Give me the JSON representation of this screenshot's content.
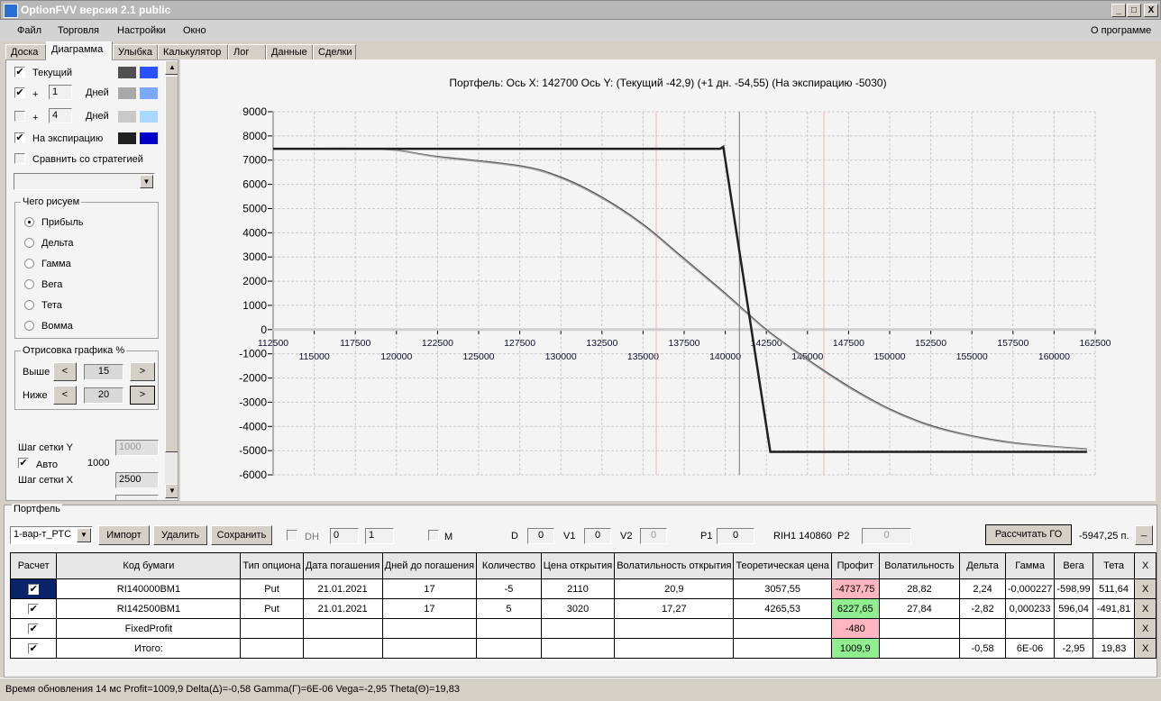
{
  "window": {
    "title": "OptionFVV версия 2.1 public",
    "minimize": "_",
    "maximize": "□",
    "close": "X"
  },
  "menu": {
    "items": [
      "Файл",
      "Торговля",
      "Настройки",
      "Окно"
    ],
    "about": "О программе"
  },
  "tabs": [
    "Доска",
    "Диаграмма",
    "Улыбка",
    "Калькулятор",
    "Лог",
    "Данные",
    "Сделки"
  ],
  "active_tab": "Диаграмма",
  "left": {
    "current": {
      "label": "Текущий",
      "checked": true,
      "colors": [
        "#505050",
        "#2b50ff"
      ]
    },
    "plus1": {
      "plus": "+",
      "days": "1",
      "days_label": "Дней",
      "checked": true,
      "colors": [
        "#a8a8a8",
        "#78a8ff"
      ]
    },
    "plus4": {
      "plus": "+",
      "days": "4",
      "days_label": "Дней",
      "checked": false,
      "colors": [
        "#c8c8c8",
        "#a8d8ff"
      ]
    },
    "expiration": {
      "label": "На экспирацию",
      "checked": true,
      "colors": [
        "#202020",
        "#0000c8"
      ]
    },
    "compare": {
      "label": "Сравнить со стратегией",
      "checked": false
    },
    "strategy_select": "",
    "draw_group": {
      "title": "Чего рисуем",
      "options": [
        "Прибыль",
        "Дельта",
        "Гамма",
        "Вега",
        "Тета",
        "Вомма"
      ],
      "selected": "Прибыль"
    },
    "render_group": {
      "title": "Отрисовка графика %",
      "above_label": "Выше",
      "above": "15",
      "below_label": "Ниже",
      "below": "20",
      "dec": "<",
      "inc": ">"
    },
    "grid_y_label": "Шаг сетки Y",
    "grid_y": "1000",
    "auto_label": "Авто",
    "auto_checked": true,
    "auto_value": "1000",
    "grid_x_label": "Шаг сетки X",
    "grid_x": "2500"
  },
  "chart_data": {
    "type": "line",
    "title": "Портфель: Ось X: 142700 Ось Y:  (Текущий -42,9)  (+1 дн. -54,55)  (На экспирацию -5030)",
    "xlim": [
      112500,
      162500
    ],
    "ylim": [
      -6000,
      9000
    ],
    "x_ticks_top": [
      112500,
      117500,
      122500,
      127500,
      132500,
      137500,
      142500,
      147500,
      152500,
      157500,
      162500
    ],
    "x_ticks_bottom": [
      115000,
      120000,
      125000,
      130000,
      135000,
      140000,
      145000,
      150000,
      155000,
      160000
    ],
    "y_ticks": [
      9000,
      8000,
      7000,
      6000,
      5000,
      4000,
      3000,
      2000,
      1000,
      0,
      -1000,
      -2000,
      -3000,
      -4000,
      -5000,
      -6000
    ],
    "grid": true,
    "vlines": [
      {
        "x": 135800,
        "color": "#ffb0b8"
      },
      {
        "x": 146000,
        "color": "#ffb0b8"
      },
      {
        "x": 140860,
        "color": "#707880"
      }
    ],
    "series": [
      {
        "name": "Текущий",
        "color": "#505050",
        "x": [
          112500,
          118900,
          122500,
          127500,
          130000,
          132500,
          135000,
          137500,
          140000,
          142500,
          145000,
          147500,
          150000,
          152500,
          155000,
          157500,
          160000,
          162000
        ],
        "y": [
          7470,
          7470,
          7150,
          6770,
          6300,
          5470,
          4350,
          2930,
          1500,
          0,
          -1230,
          -2340,
          -3280,
          -3960,
          -4390,
          -4670,
          -4830,
          -4930
        ]
      },
      {
        "name": "+1 дн.",
        "color": "#a8a8a8",
        "x": [
          112500,
          118900,
          122500,
          127500,
          130000,
          132500,
          135000,
          137500,
          140000,
          142500,
          145000,
          147500,
          150000,
          152500,
          155000,
          157500,
          160000,
          162000
        ],
        "y": [
          7470,
          7460,
          7120,
          6730,
          6250,
          5420,
          4300,
          2880,
          1450,
          -40,
          -1270,
          -2390,
          -3320,
          -4000,
          -4420,
          -4700,
          -4850,
          -4950
        ]
      },
      {
        "name": "На экспирацию",
        "color": "#202020",
        "x": [
          112500,
          139700,
          139880,
          142740,
          162000
        ],
        "y": [
          7470,
          7470,
          7550,
          -5050,
          -5050
        ]
      }
    ]
  },
  "portfolio": {
    "title": "Портфель",
    "preset": "1-вар-т_РТС",
    "import": "Импорт",
    "delete": "Удалить",
    "save": "Сохранить",
    "dh_label": "DH",
    "dh_checked": false,
    "spin1": "0",
    "spin2": "1",
    "m_label": "M",
    "m_checked": false,
    "d_label": "D",
    "d": "0",
    "v1_label": "V1",
    "v1": "0",
    "v2_label": "V2",
    "v2": "0",
    "p1_label": "P1",
    "p1": "0",
    "ticker": "RIH1 140860",
    "p2_label": "P2",
    "p2": "0",
    "calc_go": "Рассчитать ГО",
    "go_value": "-5947,25 п.",
    "collapse": "_",
    "columns": [
      "Расчет",
      "Код бумаги",
      "Тип опциона",
      "Дата погашения",
      "Дней до погашения",
      "Количество",
      "Цена открытия",
      "Волатильность открытия",
      "Теоретическая цена",
      "Профит",
      "Волатильность",
      "Дельта",
      "Гамма",
      "Вега",
      "Тета",
      "X"
    ],
    "rows": [
      {
        "checked": true,
        "cells": [
          "RI140000BM1",
          "Put",
          "21.01.2021",
          "17",
          "-5",
          "2110",
          "20,9",
          "3057,55",
          "-4737,75",
          "28,82",
          "2,24",
          "-0,000227",
          "-598,99",
          "511,64"
        ],
        "profit_state": "neg"
      },
      {
        "checked": true,
        "cells": [
          "RI142500BM1",
          "Put",
          "21.01.2021",
          "17",
          "5",
          "3020",
          "17,27",
          "4265,53",
          "6227,65",
          "27,84",
          "-2,82",
          "0,000233",
          "596,04",
          "-491,81"
        ],
        "profit_state": "pos"
      },
      {
        "checked": true,
        "cells": [
          "FixedProfit",
          "",
          "",
          "",
          "",
          "",
          "",
          "",
          "-480",
          "",
          "",
          "",
          "",
          ""
        ],
        "profit_state": "neg"
      },
      {
        "checked": true,
        "cells": [
          "Итого:",
          "",
          "",
          "",
          "",
          "",
          "",
          "",
          "1009,9",
          "",
          "-0,58",
          "6E-06",
          "-2,95",
          "19,83"
        ],
        "profit_state": "pos"
      }
    ],
    "delete_row": "X"
  },
  "status": "Время обновления 14 мс  Profit=1009,9 Delta(Δ)=-0,58 Gamma(Γ)=6E-06 Vega=-2,95 Theta(Θ)=19,83"
}
